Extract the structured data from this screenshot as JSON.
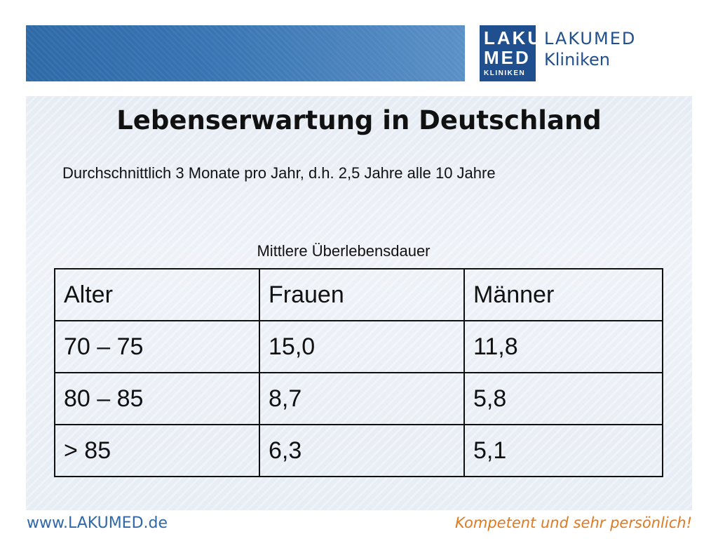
{
  "logo": {
    "block_line1": "LAKU",
    "block_line2": "MED",
    "block_line3": "KLINIKEN",
    "text_line1": "LAKUMED",
    "text_line2": "Kliniken"
  },
  "slide": {
    "title": "Lebenserwartung in Deutschland",
    "subtitle": "Durchschnittlich 3 Monate pro Jahr, d.h. 2,5 Jahre alle 10 Jahre",
    "table_caption": "Mittlere Überlebensdauer",
    "table": {
      "headers": [
        "Alter",
        "Frauen",
        "Männer"
      ],
      "rows": [
        [
          "70 – 75",
          "15,0",
          "11,8"
        ],
        [
          "80 – 85",
          "8,7",
          "5,8"
        ],
        [
          "> 85",
          "6,3",
          "5,1"
        ]
      ]
    }
  },
  "footer": {
    "url": "www.LAKUMED.de",
    "slogan": "Kompetent und sehr persönlich!"
  },
  "colors": {
    "brand_blue": "#1f4f8f",
    "header_band": "#3a76b4",
    "slogan_orange": "#e07a1f"
  }
}
